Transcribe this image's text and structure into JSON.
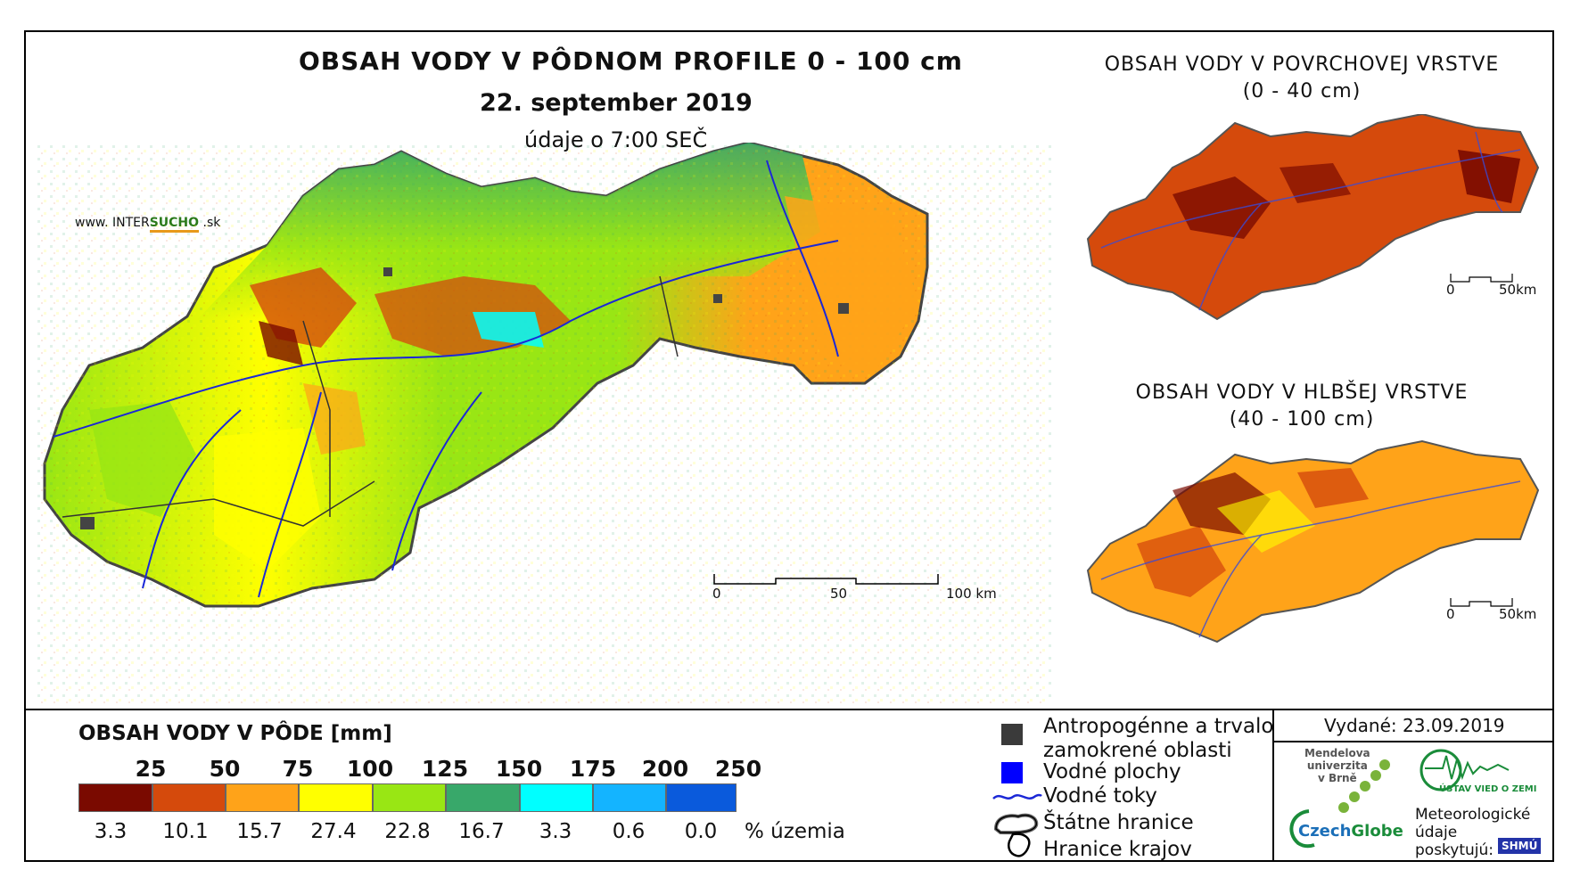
{
  "main": {
    "title": "OBSAH VODY V PÔDNOM PROFILE 0 - 100 cm",
    "date": "22. september 2019",
    "time_note": "údaje o 7:00 SEČ",
    "website_prefix": "www. INTER",
    "website_brand": "SUCHO",
    "website_suffix": " .sk",
    "scale": {
      "zero": "0",
      "mid": "50",
      "end": "100 km"
    }
  },
  "inset_top": {
    "title": "OBSAH VODY V POVRCHOVEJ VRSTVE",
    "range": "(0 - 40 cm)",
    "scale": {
      "zero": "0",
      "end": "50km"
    }
  },
  "inset_bottom": {
    "title": "OBSAH VODY V HLBŠEJ VRSTVE",
    "range": "(40 - 100 cm)",
    "scale": {
      "zero": "0",
      "end": "50km"
    }
  },
  "legend": {
    "title": "OBSAH VODY V PÔDE [mm]",
    "thresholds": [
      "25",
      "50",
      "75",
      "100",
      "125",
      "150",
      "175",
      "200",
      "250"
    ],
    "classes": [
      {
        "color": "#7a0a00",
        "percent": "3.3"
      },
      {
        "color": "#d54a0c",
        "percent": "10.1"
      },
      {
        "color": "#ffa319",
        "percent": "15.7"
      },
      {
        "color": "#ffff00",
        "percent": "27.4"
      },
      {
        "color": "#99e614",
        "percent": "22.8"
      },
      {
        "color": "#38a86a",
        "percent": "16.7"
      },
      {
        "color": "#00ffff",
        "percent": "3.3"
      },
      {
        "color": "#14b4ff",
        "percent": "0.6"
      },
      {
        "color": "#0a5adc",
        "percent": "0.0"
      }
    ],
    "percent_unit": "% územia"
  },
  "symbols": {
    "anthropogenic": "Antropogénne a trvalo\nzamokrené oblasti",
    "water_surfaces": "Vodné plochy",
    "rivers": "Vodné toky",
    "borders": "Štátne hranice",
    "regions": "Hranice krajov"
  },
  "issued": "Vydané: 23.09.2019",
  "logos": {
    "mendel": "Mendelova\nuniverzita\nv Brně",
    "czechglobe_a": "Czech",
    "czechglobe_b": "Globe",
    "uvoz": "ÚSTAV VIED O ZEMI",
    "meteo": "Meteorologické\núdaje\nposkytujú:",
    "shmu": "SHMÚ"
  }
}
